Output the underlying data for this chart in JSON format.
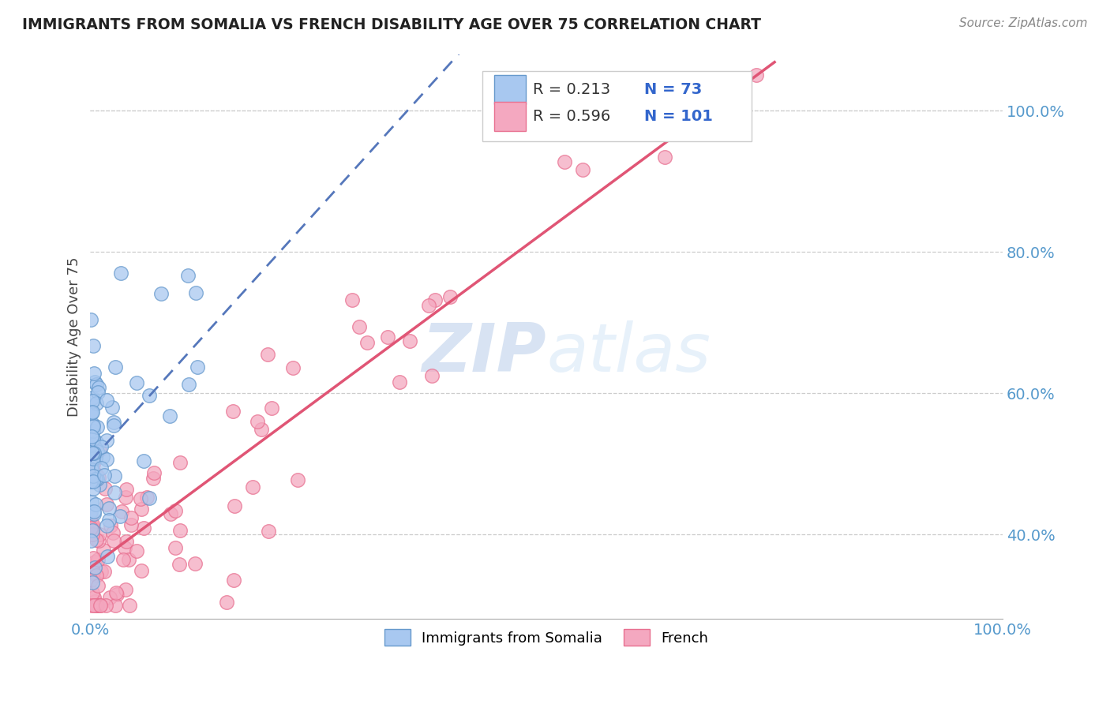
{
  "title": "IMMIGRANTS FROM SOMALIA VS FRENCH DISABILITY AGE OVER 75 CORRELATION CHART",
  "source": "Source: ZipAtlas.com",
  "ylabel": "Disability Age Over 75",
  "xlim": [
    0.0,
    1.0
  ],
  "ylim": [
    0.28,
    1.08
  ],
  "x_tick_labels_left": "0.0%",
  "x_tick_labels_right": "100.0%",
  "y_ticks": [
    0.4,
    0.6,
    0.8,
    1.0
  ],
  "y_tick_labels": [
    "40.0%",
    "60.0%",
    "80.0%",
    "100.0%"
  ],
  "legend_r_somalia": "R = 0.213",
  "legend_n_somalia": "N = 73",
  "legend_r_french": "R = 0.596",
  "legend_n_french": "N = 101",
  "color_somalia_fill": "#A8C8F0",
  "color_somalia_edge": "#6699CC",
  "color_french_fill": "#F4A8C0",
  "color_french_edge": "#E87090",
  "color_somalia_line": "#5577BB",
  "color_french_line": "#E05575",
  "color_tick": "#5599CC",
  "color_legend_r": "#333333",
  "color_legend_n": "#3366CC",
  "color_legend_n_bold": "#3366CC",
  "watermark_zip": "ZIP",
  "watermark_atlas": "atlas",
  "bottom_legend_somalia": "Immigrants from Somalia",
  "bottom_legend_french": "French"
}
